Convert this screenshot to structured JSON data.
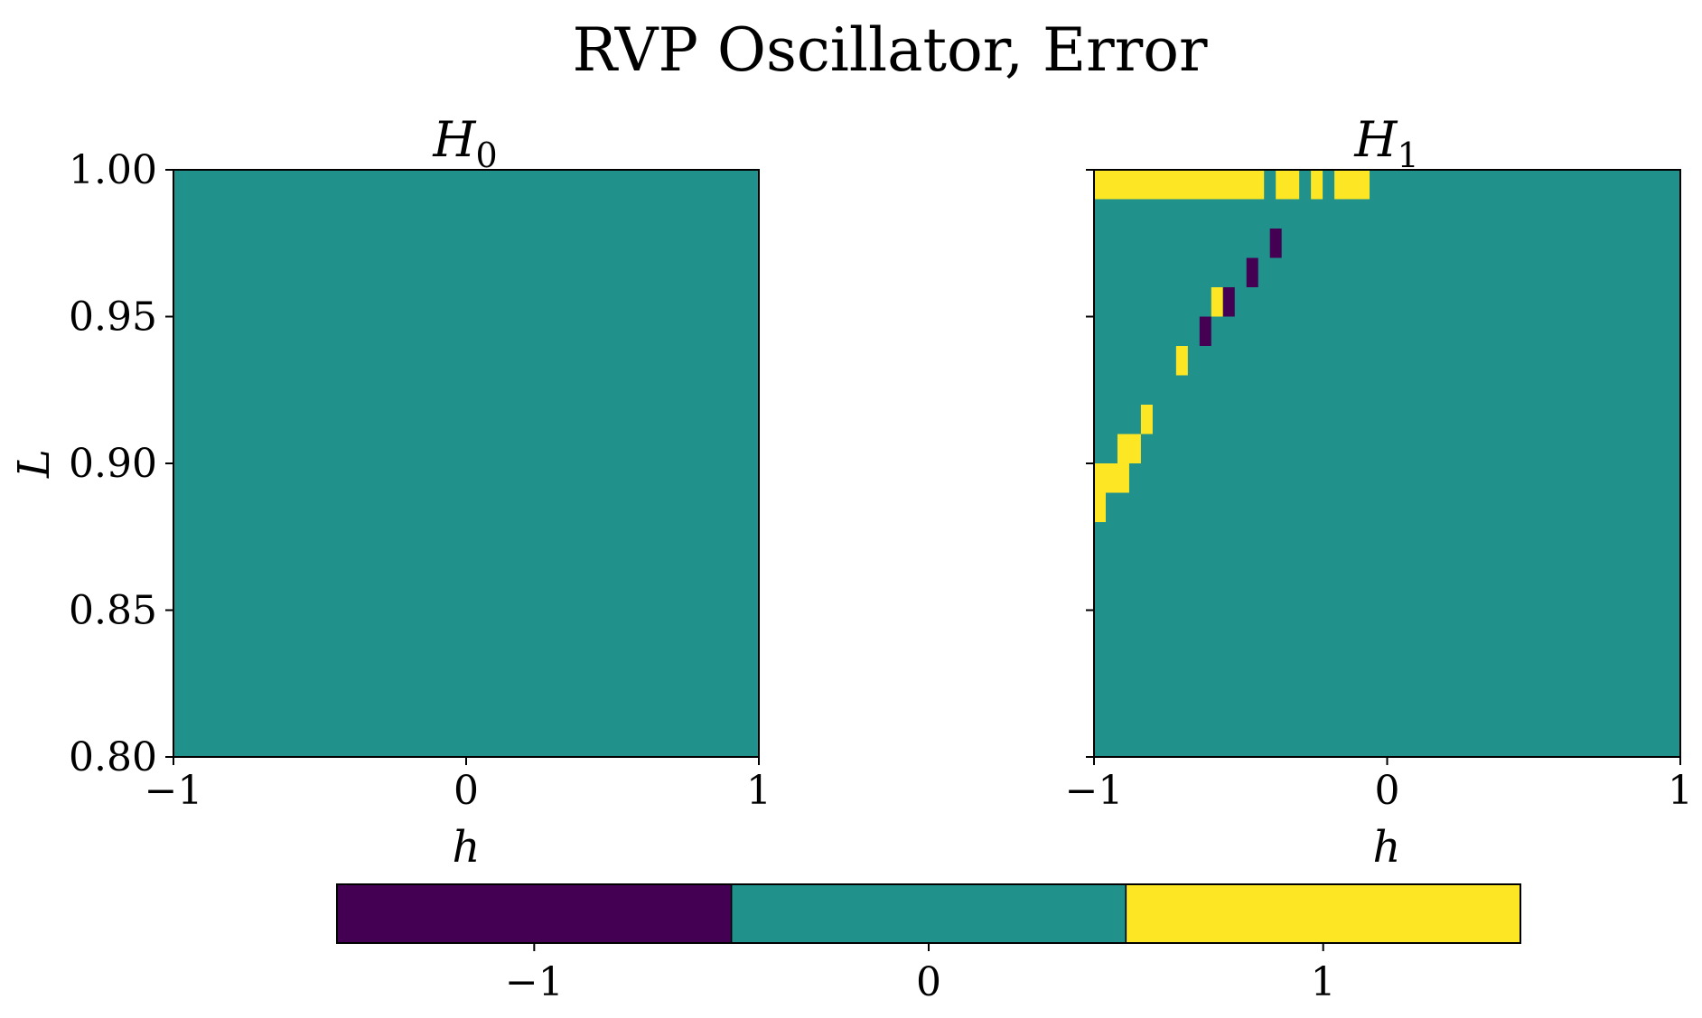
{
  "figure_title": "RVP Oscillator, Error",
  "colors": {
    "-1": "#440154",
    "0": "#21918c",
    "1": "#fde725"
  },
  "colorbar": {
    "ticks": [
      "−1",
      "0",
      "1"
    ],
    "values": [
      -1,
      0,
      1
    ]
  },
  "chart_data": [
    {
      "type": "heatmap",
      "title": "H_0",
      "title_base": "H",
      "title_sub": "0",
      "xlabel": "h",
      "ylabel": "L",
      "xlim": [
        -1,
        1
      ],
      "ylim": [
        0.8,
        1.0
      ],
      "xticks": [
        {
          "value": -1,
          "label": "−1"
        },
        {
          "value": 0,
          "label": "0"
        },
        {
          "value": 1,
          "label": "1"
        }
      ],
      "yticks": [
        {
          "value": 0.8,
          "label": "0.80"
        },
        {
          "value": 0.85,
          "label": "0.85"
        },
        {
          "value": 0.9,
          "label": "0.90"
        },
        {
          "value": 0.95,
          "label": "0.95"
        },
        {
          "value": 1.0,
          "label": "1.00"
        }
      ],
      "grid": {
        "nx": 50,
        "ny": 20
      },
      "default_value": 0,
      "cells": []
    },
    {
      "type": "heatmap",
      "title": "H_1",
      "title_base": "H",
      "title_sub": "1",
      "xlabel": "h",
      "ylabel": "",
      "xlim": [
        -1,
        1
      ],
      "ylim": [
        0.8,
        1.0
      ],
      "xticks": [
        {
          "value": -1,
          "label": "−1"
        },
        {
          "value": 0,
          "label": "0"
        },
        {
          "value": 1,
          "label": "1"
        }
      ],
      "yticks": [
        {
          "value": 0.8,
          "label": ""
        },
        {
          "value": 0.85,
          "label": ""
        },
        {
          "value": 0.9,
          "label": ""
        },
        {
          "value": 0.95,
          "label": ""
        },
        {
          "value": 1.0,
          "label": ""
        }
      ],
      "grid": {
        "nx": 50,
        "ny": 20
      },
      "default_value": 0,
      "cells": [
        {
          "x": [
            -1.0,
            -0.42
          ],
          "y": [
            0.99,
            1.0
          ],
          "v": 1
        },
        {
          "x": [
            -0.38,
            -0.3
          ],
          "y": [
            0.99,
            1.0
          ],
          "v": 1
        },
        {
          "x": [
            -0.26,
            -0.22
          ],
          "y": [
            0.99,
            1.0
          ],
          "v": 1
        },
        {
          "x": [
            -0.18,
            -0.06
          ],
          "y": [
            0.99,
            1.0
          ],
          "v": 1
        },
        {
          "x": [
            -0.4,
            -0.36
          ],
          "y": [
            0.97,
            0.98
          ],
          "v": -1
        },
        {
          "x": [
            -0.48,
            -0.44
          ],
          "y": [
            0.96,
            0.97
          ],
          "v": -1
        },
        {
          "x": [
            -0.6,
            -0.56
          ],
          "y": [
            0.95,
            0.96
          ],
          "v": 1
        },
        {
          "x": [
            -0.56,
            -0.52
          ],
          "y": [
            0.95,
            0.96
          ],
          "v": -1
        },
        {
          "x": [
            -0.64,
            -0.6
          ],
          "y": [
            0.94,
            0.95
          ],
          "v": -1
        },
        {
          "x": [
            -0.72,
            -0.68
          ],
          "y": [
            0.93,
            0.94
          ],
          "v": 1
        },
        {
          "x": [
            -0.84,
            -0.8
          ],
          "y": [
            0.91,
            0.92
          ],
          "v": 1
        },
        {
          "x": [
            -0.92,
            -0.84
          ],
          "y": [
            0.9,
            0.91
          ],
          "v": 1
        },
        {
          "x": [
            -1.0,
            -0.88
          ],
          "y": [
            0.89,
            0.9
          ],
          "v": 1
        },
        {
          "x": [
            -1.0,
            -0.96
          ],
          "y": [
            0.88,
            0.89
          ],
          "v": 1
        }
      ]
    }
  ]
}
